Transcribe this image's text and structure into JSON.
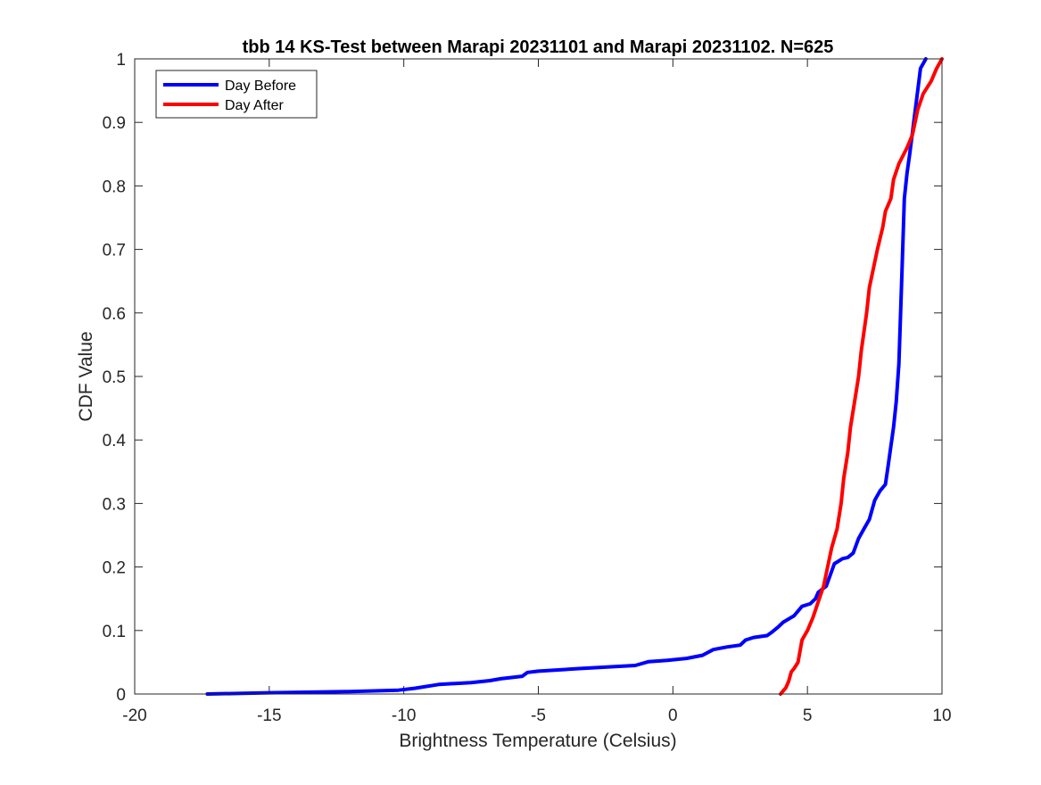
{
  "chart_data": {
    "type": "line",
    "title": "tbb 14 KS-Test between Marapi 20231101 and Marapi 20231102. N=625",
    "xlabel": "Brightness Temperature (Celsius)",
    "ylabel": "CDF Value",
    "xlim": [
      -20,
      10
    ],
    "ylim": [
      0,
      1
    ],
    "xticks": [
      -20,
      -15,
      -10,
      -5,
      0,
      5,
      10
    ],
    "xtick_labels": [
      "-20",
      "-15",
      "-10",
      "-5",
      "0",
      "5",
      "10"
    ],
    "yticks": [
      0,
      0.1,
      0.2,
      0.3,
      0.4,
      0.5,
      0.6,
      0.7,
      0.8,
      0.9,
      1
    ],
    "ytick_labels": [
      "0",
      "0.1",
      "0.2",
      "0.3",
      "0.4",
      "0.5",
      "0.6",
      "0.7",
      "0.8",
      "0.9",
      "1"
    ],
    "grid": false,
    "legend_position": "top-left",
    "series": [
      {
        "name": "Day Before",
        "color": "#0000ff",
        "points": [
          [
            -17.3,
            0.0
          ],
          [
            -15.0,
            0.002
          ],
          [
            -12.0,
            0.004
          ],
          [
            -10.2,
            0.006
          ],
          [
            -9.6,
            0.009
          ],
          [
            -8.7,
            0.015
          ],
          [
            -7.5,
            0.018
          ],
          [
            -6.8,
            0.021
          ],
          [
            -6.4,
            0.024
          ],
          [
            -5.6,
            0.028
          ],
          [
            -5.4,
            0.034
          ],
          [
            -5.0,
            0.036
          ],
          [
            -3.5,
            0.04
          ],
          [
            -1.4,
            0.045
          ],
          [
            -0.9,
            0.051
          ],
          [
            -0.2,
            0.053
          ],
          [
            0.5,
            0.056
          ],
          [
            1.1,
            0.061
          ],
          [
            1.5,
            0.07
          ],
          [
            2.0,
            0.074
          ],
          [
            2.5,
            0.077
          ],
          [
            2.7,
            0.085
          ],
          [
            3.0,
            0.089
          ],
          [
            3.5,
            0.092
          ],
          [
            3.7,
            0.098
          ],
          [
            3.9,
            0.105
          ],
          [
            4.1,
            0.113
          ],
          [
            4.5,
            0.123
          ],
          [
            4.8,
            0.138
          ],
          [
            5.1,
            0.142
          ],
          [
            5.3,
            0.15
          ],
          [
            5.4,
            0.16
          ],
          [
            5.7,
            0.17
          ],
          [
            6.0,
            0.205
          ],
          [
            6.3,
            0.213
          ],
          [
            6.5,
            0.215
          ],
          [
            6.7,
            0.222
          ],
          [
            6.9,
            0.245
          ],
          [
            7.1,
            0.26
          ],
          [
            7.3,
            0.275
          ],
          [
            7.5,
            0.305
          ],
          [
            7.7,
            0.32
          ],
          [
            7.9,
            0.33
          ],
          [
            8.0,
            0.36
          ],
          [
            8.2,
            0.42
          ],
          [
            8.3,
            0.46
          ],
          [
            8.4,
            0.52
          ],
          [
            8.5,
            0.65
          ],
          [
            8.6,
            0.78
          ],
          [
            8.7,
            0.82
          ],
          [
            8.8,
            0.85
          ],
          [
            8.95,
            0.9
          ],
          [
            9.1,
            0.95
          ],
          [
            9.2,
            0.985
          ],
          [
            9.4,
            1.0
          ]
        ]
      },
      {
        "name": "Day After",
        "color": "#ff0000",
        "points": [
          [
            4.0,
            0.0
          ],
          [
            4.2,
            0.01
          ],
          [
            4.3,
            0.02
          ],
          [
            4.4,
            0.035
          ],
          [
            4.5,
            0.04
          ],
          [
            4.65,
            0.05
          ],
          [
            4.8,
            0.085
          ],
          [
            5.0,
            0.1
          ],
          [
            5.2,
            0.12
          ],
          [
            5.4,
            0.145
          ],
          [
            5.6,
            0.17
          ],
          [
            5.75,
            0.2
          ],
          [
            5.9,
            0.23
          ],
          [
            6.1,
            0.26
          ],
          [
            6.25,
            0.3
          ],
          [
            6.35,
            0.34
          ],
          [
            6.5,
            0.38
          ],
          [
            6.6,
            0.42
          ],
          [
            6.75,
            0.46
          ],
          [
            6.9,
            0.5
          ],
          [
            7.0,
            0.54
          ],
          [
            7.1,
            0.57
          ],
          [
            7.2,
            0.6
          ],
          [
            7.3,
            0.64
          ],
          [
            7.45,
            0.67
          ],
          [
            7.6,
            0.7
          ],
          [
            7.8,
            0.735
          ],
          [
            7.9,
            0.76
          ],
          [
            8.1,
            0.78
          ],
          [
            8.2,
            0.81
          ],
          [
            8.4,
            0.835
          ],
          [
            8.7,
            0.86
          ],
          [
            8.9,
            0.88
          ],
          [
            9.1,
            0.92
          ],
          [
            9.3,
            0.945
          ],
          [
            9.6,
            0.965
          ],
          [
            9.8,
            0.985
          ],
          [
            10.0,
            1.0
          ]
        ]
      }
    ]
  }
}
